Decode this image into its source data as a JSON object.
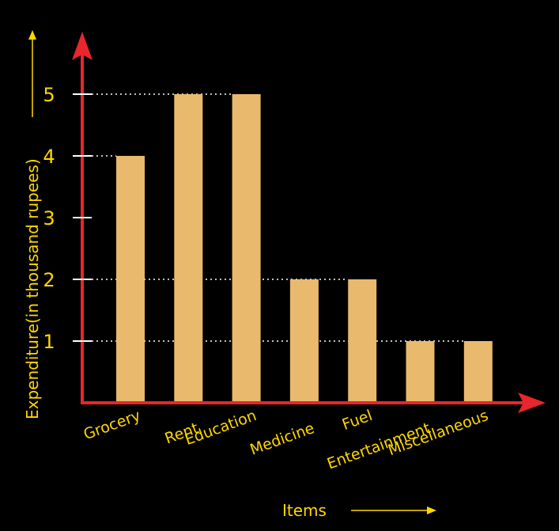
{
  "chart_data": {
    "type": "bar",
    "categories": [
      "Grocery",
      "Rent",
      "Education",
      "Medicine",
      "Fuel",
      "Entertainment",
      "Miscellaneous"
    ],
    "values": [
      4,
      5,
      5,
      2,
      2,
      1,
      1
    ],
    "xlabel": "Items",
    "ylabel": "Expenditure(in thousand rupees)",
    "yticks": [
      "1",
      "2",
      "3",
      "4",
      "5"
    ],
    "ylim": [
      0,
      5
    ],
    "grid": "dotted guide lines at bar heights",
    "colors": {
      "bar": "#e9b96e",
      "axis": "#e8262c",
      "text": "#ffd700",
      "tick": "#ffffff",
      "background": "#000000"
    }
  }
}
